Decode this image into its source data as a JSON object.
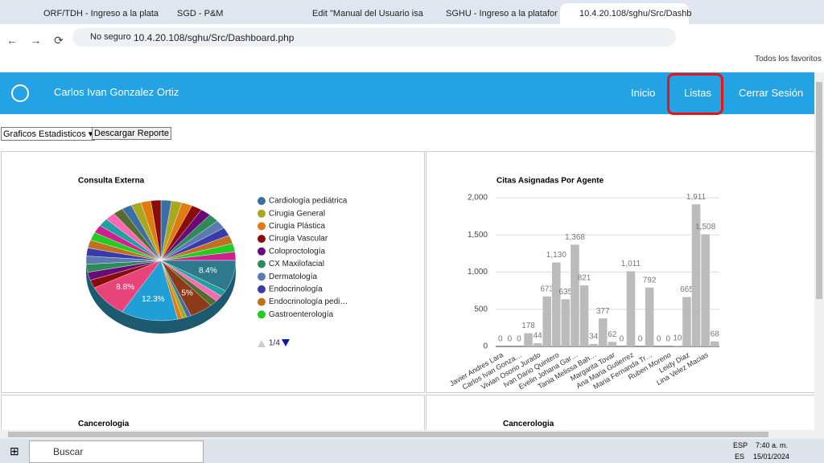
{
  "browser": {
    "tabs": [
      "ORF/TDH - Ingreso a la plata",
      "SGD - P&M",
      "Edit \"Manual del Usuario isa",
      "SGHU - Ingreso a la platafor",
      "10.4.20.108/sghu/Src/Dashb"
    ],
    "security": "No seguro",
    "url": "10.4.20.108/sghu/Src/Dashboard.php",
    "bookmarks": "Todos los favoritos"
  },
  "header": {
    "user": "Carlos Ivan Gonzalez Ortiz",
    "nav": [
      "Inicio",
      "Listas",
      "Cerrar Sesión"
    ]
  },
  "controls": {
    "select": "Graficos Estadisticos",
    "button": "Descargar Reporte"
  },
  "pie_chart": {
    "type": "pie",
    "title": "Consulta Externa",
    "values": [
      8.4,
      5,
      12.3,
      8.8
    ],
    "value_labels": [
      "8.4%",
      "5%",
      "12.3%",
      "8.8%"
    ],
    "colors": [
      "#2e7a8c",
      "#8b3a1a",
      "#1f9fd5",
      "#e8447a"
    ],
    "legend": [
      {
        "name": "Cardiología pediátrica",
        "color": "#3a6ea5"
      },
      {
        "name": "Cirugia General",
        "color": "#a8a820"
      },
      {
        "name": "Cirugía Plástica",
        "color": "#e07b10"
      },
      {
        "name": "Cirugía Vascular",
        "color": "#8b0a0a"
      },
      {
        "name": "Coloproctología",
        "color": "#6a0a7a"
      },
      {
        "name": "CX Maxilofacial",
        "color": "#2e8b57"
      },
      {
        "name": "Dermatología",
        "color": "#5a7ab0"
      },
      {
        "name": "Endocrinología",
        "color": "#3a3aaa"
      },
      {
        "name": "Endocrinología pedi…",
        "color": "#c07020"
      },
      {
        "name": "Gastroenterología",
        "color": "#22cc22"
      }
    ],
    "page": "1/4"
  },
  "bar_chart": {
    "type": "bar",
    "title": "Citas Asignadas Por Agente",
    "color": "#bbbbbb",
    "categories": [
      "Javier Andres Lara",
      null,
      "Carlos Ivan Gonza…",
      null,
      "Vivian Osorio Jurado",
      null,
      "Ivan Dario Quintero",
      null,
      "Evelin Johana Gar…",
      null,
      "Tania Melissa Bah…",
      null,
      "Margarita Tovar",
      null,
      "Ana Maria Gutierrez",
      null,
      "Maria Fernanda Tr…",
      null,
      "Ruben Moreno",
      null,
      "Leidy Diaz",
      null,
      "Lina Velez Macias",
      null
    ],
    "values": [
      0,
      0,
      0,
      178,
      44,
      673,
      1130,
      635,
      1368,
      821,
      34,
      377,
      62,
      0,
      1011,
      0,
      792,
      0,
      0,
      10,
      665,
      1911,
      1508,
      68
    ],
    "value_labels": [
      "0",
      "0",
      "0",
      "178",
      "44",
      "673",
      "1,130",
      "635",
      "1,368",
      "821",
      "34",
      "377",
      "62",
      "0",
      "1,011",
      "0",
      "792",
      "0",
      "0",
      "10",
      "665",
      "1,911",
      "1,508",
      "68"
    ],
    "ylim": [
      0,
      2000
    ],
    "yticks": [
      0,
      500,
      {
        "value": 1000,
        "label": "1,000"
      },
      {
        "value": 1500,
        "label": "1,500"
      },
      {
        "value": 2000,
        "label": "2,000"
      }
    ]
  },
  "lower_panels": [
    "Cancerologia",
    "Cancerologia"
  ],
  "taskbar": {
    "search": "Buscar",
    "lang": [
      "ESP",
      "ES"
    ],
    "time": "7:40 a. m.",
    "date": "15/01/2024"
  }
}
